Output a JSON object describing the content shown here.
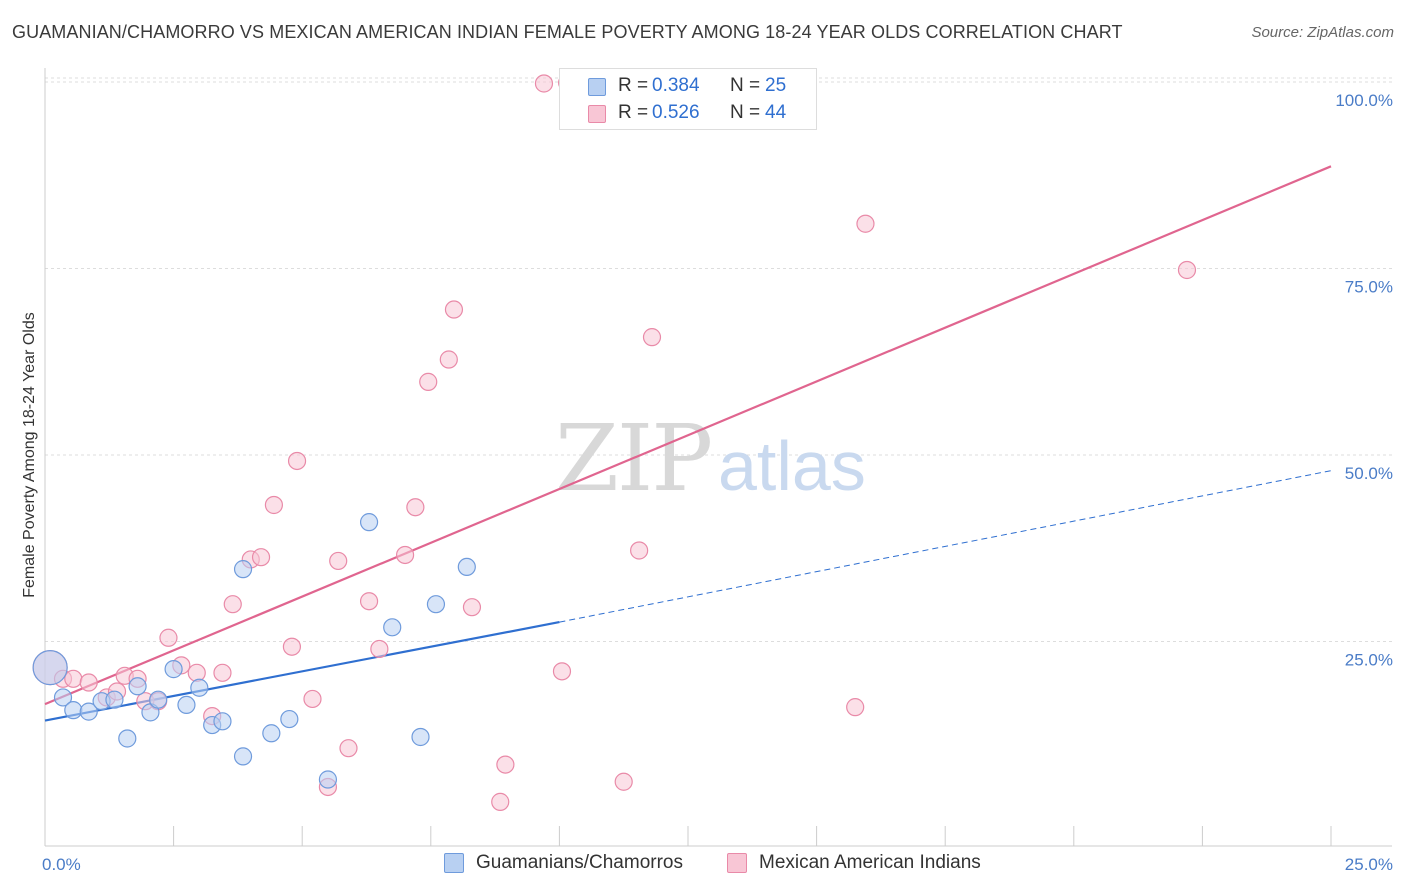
{
  "title": "GUAMANIAN/CHAMORRO VS MEXICAN AMERICAN INDIAN FEMALE POVERTY AMONG 18-24 YEAR OLDS CORRELATION CHART",
  "source": "Source: ZipAtlas.com",
  "watermark": {
    "zip": "ZIP",
    "atlas": "atlas"
  },
  "colors": {
    "blue_fill": "#b8d0f2",
    "blue_stroke": "#6f9bdc",
    "blue_line": "#2f6fd0",
    "pink_fill": "#f8c6d5",
    "pink_stroke": "#e98aa8",
    "pink_line": "#e0658f",
    "tick_text": "#4a7cc7",
    "grid": "#dddddd"
  },
  "legend_top": {
    "rows": [
      {
        "r_label": "R =",
        "r_value": "0.384",
        "n_label": "N =",
        "n_value": "25"
      },
      {
        "r_label": "R =",
        "r_value": "0.526",
        "n_label": "N =",
        "n_value": "44"
      }
    ]
  },
  "legend_bottom": {
    "items": [
      {
        "label": "Guamanians/Chamorros"
      },
      {
        "label": "Mexican American Indians"
      }
    ]
  },
  "chart_data": {
    "type": "scatter",
    "title": "GUAMANIAN/CHAMORRO VS MEXICAN AMERICAN INDIAN FEMALE POVERTY AMONG 18-24 YEAR OLDS CORRELATION CHART",
    "xlabel": "",
    "ylabel": "Female Poverty Among 18-24 Year Olds",
    "xlim": [
      0,
      25
    ],
    "ylim": [
      0,
      100
    ],
    "x_tick_labels": [
      "0.0%",
      "25.0%"
    ],
    "y_ticks": [
      25,
      50,
      75,
      100
    ],
    "y_tick_labels": [
      "25.0%",
      "50.0%",
      "75.0%",
      "100.0%"
    ],
    "grid": true,
    "legend_position": "top-center",
    "series": [
      {
        "name": "Guamanians/Chamorros",
        "R": 0.384,
        "N": 25,
        "points": [
          [
            0.1,
            21.5
          ],
          [
            0.35,
            17.5
          ],
          [
            0.55,
            15.8
          ],
          [
            0.85,
            15.6
          ],
          [
            1.1,
            17.0
          ],
          [
            1.35,
            17.2
          ],
          [
            1.6,
            12.0
          ],
          [
            1.8,
            19.0
          ],
          [
            2.05,
            15.5
          ],
          [
            2.2,
            17.2
          ],
          [
            2.5,
            21.3
          ],
          [
            2.75,
            16.5
          ],
          [
            3.0,
            18.8
          ],
          [
            3.25,
            13.8
          ],
          [
            3.45,
            14.3
          ],
          [
            3.85,
            9.6
          ],
          [
            3.85,
            34.7
          ],
          [
            4.4,
            12.7
          ],
          [
            4.75,
            14.6
          ],
          [
            5.5,
            6.5
          ],
          [
            6.3,
            41.0
          ],
          [
            6.75,
            26.9
          ],
          [
            7.3,
            12.2
          ],
          [
            7.6,
            30.0
          ],
          [
            8.2,
            35.0
          ]
        ],
        "trend": {
          "x0": 0,
          "y0": 14.4,
          "x_solid_end": 10,
          "y_solid_end": 27.6,
          "x1": 25,
          "y1": 47.9
        }
      },
      {
        "name": "Mexican American Indians",
        "R": 0.526,
        "N": 44,
        "points": [
          [
            0.1,
            21.5
          ],
          [
            0.35,
            20.0
          ],
          [
            0.55,
            20.0
          ],
          [
            0.85,
            19.5
          ],
          [
            1.2,
            17.5
          ],
          [
            1.4,
            18.3
          ],
          [
            1.55,
            20.4
          ],
          [
            1.8,
            20.0
          ],
          [
            1.95,
            17.0
          ],
          [
            2.2,
            17.0
          ],
          [
            2.4,
            25.5
          ],
          [
            2.65,
            21.8
          ],
          [
            2.95,
            20.8
          ],
          [
            3.25,
            15.0
          ],
          [
            3.45,
            20.8
          ],
          [
            3.65,
            30.0
          ],
          [
            4.0,
            36.0
          ],
          [
            4.2,
            36.3
          ],
          [
            4.45,
            43.3
          ],
          [
            4.8,
            24.3
          ],
          [
            4.9,
            49.2
          ],
          [
            5.2,
            17.3
          ],
          [
            5.5,
            5.5
          ],
          [
            5.7,
            35.8
          ],
          [
            5.9,
            10.7
          ],
          [
            6.3,
            30.4
          ],
          [
            6.5,
            24.0
          ],
          [
            7.0,
            36.6
          ],
          [
            7.2,
            43.0
          ],
          [
            7.45,
            59.8
          ],
          [
            7.85,
            62.8
          ],
          [
            7.95,
            69.5
          ],
          [
            8.3,
            29.6
          ],
          [
            8.85,
            3.5
          ],
          [
            8.95,
            8.5
          ],
          [
            9.7,
            99.8
          ],
          [
            10.05,
            21.0
          ],
          [
            10.15,
            99.9
          ],
          [
            11.25,
            6.2
          ],
          [
            11.55,
            37.2
          ],
          [
            11.8,
            65.8
          ],
          [
            15.75,
            16.2
          ],
          [
            15.95,
            81.0
          ],
          [
            22.2,
            74.8
          ]
        ],
        "trend": {
          "x0": 0,
          "y0": 16.6,
          "x1": 25,
          "y1": 88.7
        }
      }
    ]
  }
}
